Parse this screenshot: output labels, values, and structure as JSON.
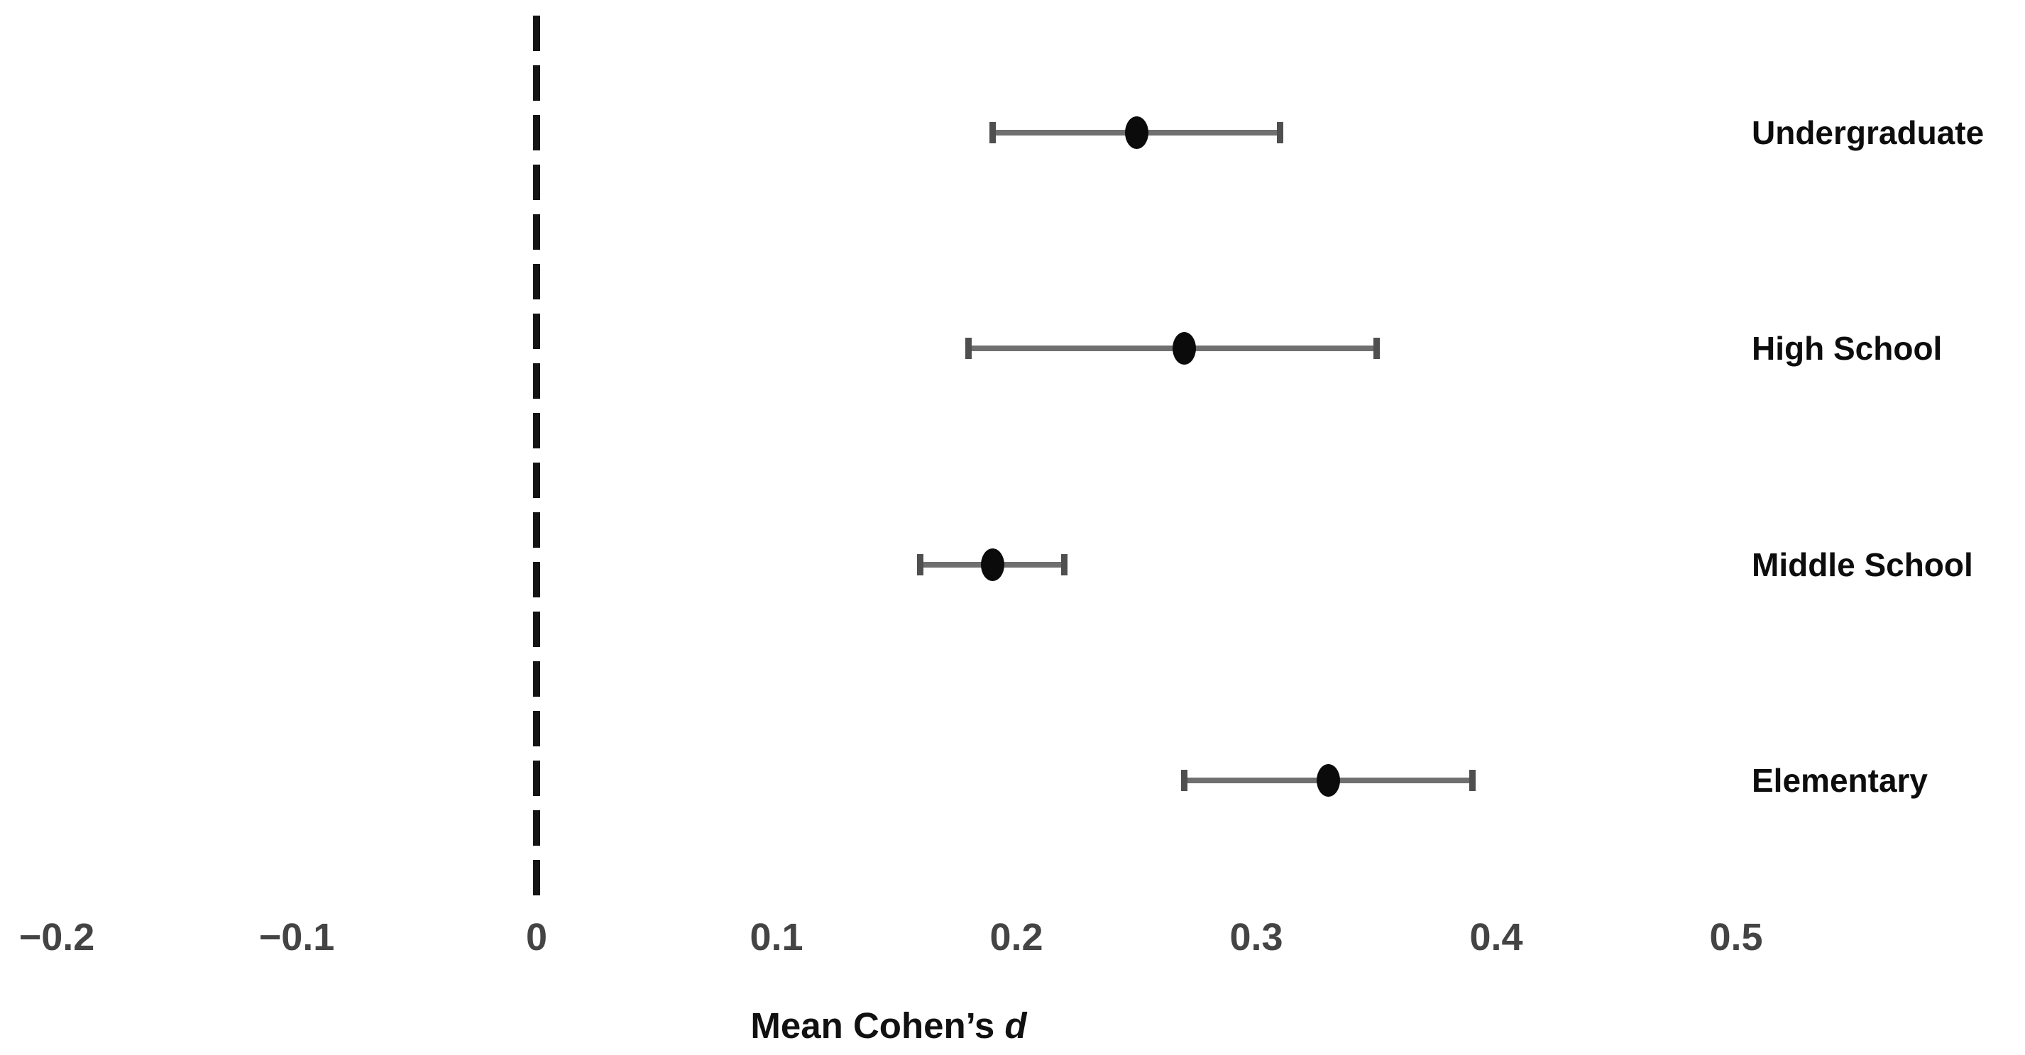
{
  "chart_data": {
    "type": "scatter",
    "subtype": "forest-plot-dot-whisker",
    "title": "",
    "xlabel_prefix": "Mean Cohen’s",
    "xlabel_symbol": "d",
    "categories": [
      "Undergraduate",
      "High School",
      "Middle School",
      "Elementary"
    ],
    "series": [
      {
        "name": "Mean Cohen's d",
        "values": [
          0.25,
          0.27,
          0.19,
          0.33
        ],
        "ci_low": [
          0.19,
          0.18,
          0.16,
          0.27
        ],
        "ci_high": [
          0.31,
          0.35,
          0.22,
          0.39
        ]
      }
    ],
    "x_ticks": [
      -0.2,
      -0.1,
      0,
      0.1,
      0.2,
      0.3,
      0.4,
      0.5
    ],
    "x_tick_labels": [
      "−0.2",
      "−0.1",
      "0",
      "0.1",
      "0.2",
      "0.3",
      "0.4",
      "0.5"
    ],
    "xlim": [
      -0.224,
      0.62
    ],
    "reference_line_x": 0,
    "grid": false,
    "legend": "none",
    "axis_line": "none",
    "colors": {
      "background": "#ffffff",
      "point": "#0b0b0b",
      "whisker": "#6f6f6f",
      "cap": "#4f4f4f",
      "reference_line": "#141414",
      "tick_label": "#444444",
      "category_label": "#0d0d0d",
      "axis_label": "#111111"
    }
  }
}
